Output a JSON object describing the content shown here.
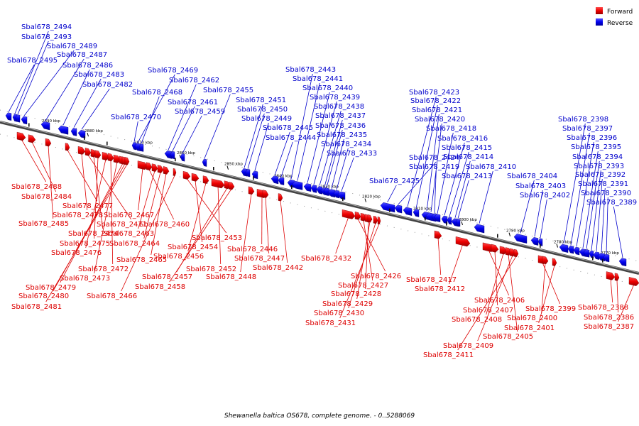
{
  "legend": {
    "forward_label": "Forward",
    "reverse_label": "Reverse",
    "forward_color": "#ee0000",
    "reverse_color": "#0000ee"
  },
  "caption": "Shewanella baltica OS678, complete genome. - 0..5288069",
  "ticks": [
    "2890 kbp",
    "2880 kbp",
    "2870 kbp",
    "2860 kbp",
    "2850 kbp",
    "2840 kbp",
    "2830 kbp",
    "2820 kbp",
    "2810 kbp",
    "2800 kbp",
    "2790 kbp",
    "2780 kbp",
    "2770 kbp"
  ],
  "reverse_genes": [
    "Sbal678_2495",
    "Sbal678_2494",
    "Sbal678_2493",
    "Sbal678_2489",
    "Sbal678_2487",
    "Sbal678_2486",
    "Sbal678_2483",
    "Sbal678_2482",
    "Sbal678_2470",
    "Sbal678_2469",
    "Sbal678_2468",
    "Sbal678_2462",
    "Sbal678_2461",
    "Sbal678_2459",
    "Sbal678_2455",
    "Sbal678_2451",
    "Sbal678_2450",
    "Sbal678_2449",
    "Sbal678_2445",
    "Sbal678_2444",
    "Sbal678_2443",
    "Sbal678_2441",
    "Sbal678_2440",
    "Sbal678_2439",
    "Sbal678_2438",
    "Sbal678_2437",
    "Sbal678_2436",
    "Sbal678_2435",
    "Sbal678_2434",
    "Sbal678_2433",
    "Sbal678_2425",
    "Sbal678_2424",
    "Sbal678_2423",
    "Sbal678_2422",
    "Sbal678_2421",
    "Sbal678_2420",
    "Sbal678_2419",
    "Sbal678_2418",
    "Sbal678_2416",
    "Sbal678_2415",
    "Sbal678_2414",
    "Sbal678_2413",
    "Sbal678_2410",
    "Sbal678_2404",
    "Sbal678_2403",
    "Sbal678_2402",
    "Sbal678_2398",
    "Sbal678_2397",
    "Sbal678_2396",
    "Sbal678_2395",
    "Sbal678_2394",
    "Sbal678_2393",
    "Sbal678_2392",
    "Sbal678_2391",
    "Sbal678_2390",
    "Sbal678_2389"
  ],
  "forward_genes": [
    "Sbal678_2488",
    "Sbal678_2484",
    "Sbal678_2485",
    "Sbal678_2477",
    "Sbal678_2478",
    "Sbal678_2471",
    "Sbal678_2474",
    "Sbal678_2475",
    "Sbal678_2476",
    "Sbal678_2472",
    "Sbal678_2473",
    "Sbal678_2479",
    "Sbal678_2480",
    "Sbal678_2481",
    "Sbal678_2467",
    "Sbal678_2460",
    "Sbal678_2463",
    "Sbal678_2464",
    "Sbal678_2465",
    "Sbal678_2466",
    "Sbal678_2453",
    "Sbal678_2454",
    "Sbal678_2456",
    "Sbal678_2452",
    "Sbal678_2457",
    "Sbal678_2458",
    "Sbal678_2448",
    "Sbal678_2446",
    "Sbal678_2447",
    "Sbal678_2442",
    "Sbal678_2432",
    "Sbal678_2426",
    "Sbal678_2427",
    "Sbal678_2428",
    "Sbal678_2429",
    "Sbal678_2430",
    "Sbal678_2431",
    "Sbal678_2417",
    "Sbal678_2412",
    "Sbal678_2406",
    "Sbal678_2407",
    "Sbal678_2408",
    "Sbal678_2405",
    "Sbal678_2409",
    "Sbal678_2411",
    "Sbal678_2399",
    "Sbal678_2400",
    "Sbal678_2401",
    "Sbal678_2388",
    "Sbal678_2386",
    "Sbal678_2387"
  ]
}
